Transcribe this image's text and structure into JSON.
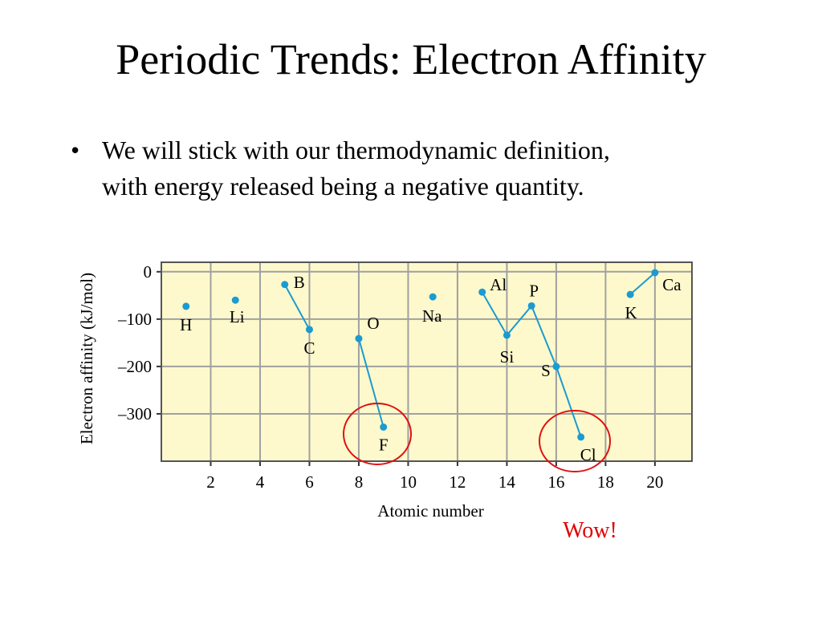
{
  "slide": {
    "title": "Periodic Trends:  Electron Affinity",
    "bullets": [
      "We will stick with our thermodynamic definition,",
      "with energy released being a negative quantity."
    ],
    "annotation": "Wow!"
  },
  "chart_data": {
    "type": "line",
    "xlabel": "Atomic number",
    "ylabel": "Electron affinity (kJ/mol)",
    "x": [
      1,
      null,
      3,
      null,
      5,
      6,
      null,
      8,
      9,
      null,
      11,
      null,
      13,
      14,
      15,
      16,
      17,
      null,
      19,
      20
    ],
    "series": [
      {
        "color": "#1b9bd0",
        "values": [
          -73,
          null,
          -60,
          null,
          -27,
          -122,
          null,
          -141,
          -328,
          null,
          -53,
          null,
          -43,
          -134,
          -72,
          -200,
          -349,
          null,
          -48,
          -2
        ],
        "point_labels": [
          "H",
          null,
          "Li",
          null,
          "B",
          "C",
          null,
          "O",
          "F",
          null,
          "Na",
          null,
          "Al",
          "Si",
          "P",
          "S",
          "Cl",
          null,
          "K",
          "Ca"
        ]
      }
    ],
    "xlim": [
      0,
      21.5
    ],
    "ylim": [
      -400,
      20
    ],
    "xticks": [
      2,
      4,
      6,
      8,
      10,
      12,
      14,
      16,
      18,
      20
    ],
    "yticks": [
      0,
      {
        "value": -100,
        "label": "–100"
      },
      {
        "value": -200,
        "label": "–200"
      },
      {
        "value": -300,
        "label": "–300"
      }
    ],
    "grid": true
  }
}
